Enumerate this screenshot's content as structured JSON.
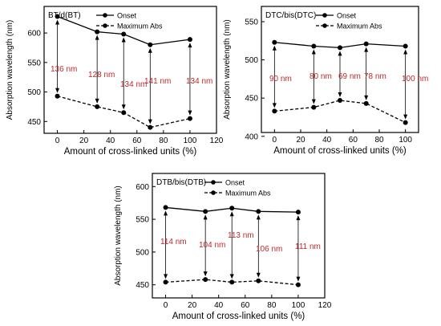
{
  "chart_data": [
    {
      "type": "line",
      "title": "BT/d(BT)",
      "xlabel": "Amount of cross-linked units (%)",
      "ylabel": "Absorption wavelength (nm)",
      "xlim": [
        -10,
        120
      ],
      "ylim": [
        430,
        645
      ],
      "xticks": [
        0,
        20,
        40,
        60,
        80,
        100,
        120
      ],
      "yticks": [
        450,
        500,
        550,
        600
      ],
      "x": [
        0,
        30,
        50,
        70,
        100
      ],
      "series": [
        {
          "name": "Onset",
          "style": "solid",
          "values": [
            628,
            602,
            598,
            580,
            589
          ]
        },
        {
          "name": "Maximum Abs",
          "style": "dashed",
          "values": [
            493,
            475,
            465,
            440,
            455
          ]
        }
      ],
      "annotations": [
        "136 nm",
        "128 nm",
        "134 nm",
        "141 nm",
        "134 nm"
      ],
      "legend": "top-right"
    },
    {
      "type": "line",
      "title": "DTC/bis(DTC)",
      "xlabel": "Amount of cross-linked units (%)",
      "ylabel": "Absorption wavelength (nm)",
      "xlim": [
        -10,
        110
      ],
      "ylim": [
        405,
        570
      ],
      "xticks": [
        0,
        20,
        40,
        60,
        80,
        100
      ],
      "yticks": [
        400,
        450,
        500,
        550
      ],
      "x": [
        0,
        30,
        50,
        70,
        100
      ],
      "series": [
        {
          "name": "Onset",
          "style": "solid",
          "values": [
            523,
            518,
            516,
            521,
            518
          ]
        },
        {
          "name": "Maximum Abs",
          "style": "dashed",
          "values": [
            433,
            438,
            447,
            443,
            418
          ]
        }
      ],
      "annotations": [
        "90 nm",
        "80 nm",
        "69 nm",
        "78 nm",
        "100 nm"
      ],
      "legend": "top-right"
    },
    {
      "type": "line",
      "title": "DTB/bis(DTB)",
      "xlabel": "Amount of cross-linked units (%)",
      "ylabel": "Absorption wavelength (nm)",
      "xlim": [
        -10,
        120
      ],
      "ylim": [
        430,
        620
      ],
      "xticks": [
        0,
        20,
        40,
        60,
        80,
        100,
        120
      ],
      "yticks": [
        450,
        500,
        550,
        600
      ],
      "x": [
        0,
        30,
        50,
        70,
        100
      ],
      "series": [
        {
          "name": "Onset",
          "style": "solid",
          "values": [
            568,
            562,
            567,
            562,
            561
          ]
        },
        {
          "name": "Maximum Abs",
          "style": "dashed",
          "values": [
            454,
            458,
            454,
            456,
            450
          ]
        }
      ],
      "annotations": [
        "114 nm",
        "104 nm",
        "113 nm",
        "106 nm",
        "111 nm"
      ],
      "legend": "top-right"
    }
  ]
}
